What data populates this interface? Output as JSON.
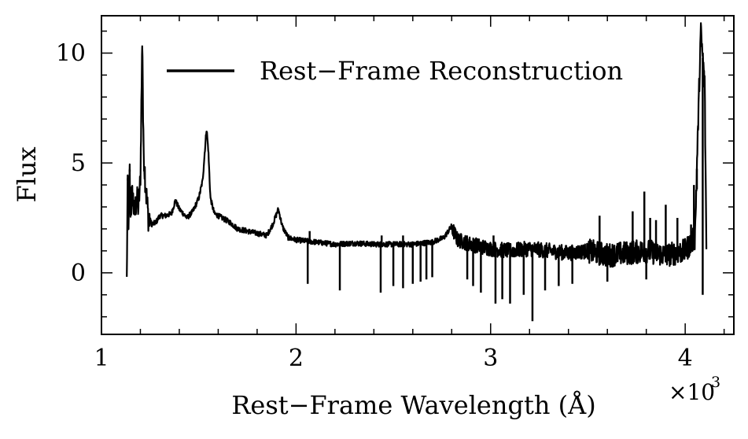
{
  "chart_data": {
    "type": "line",
    "xlabel": "Rest−Frame Wavelength (Å)",
    "ylabel": "Flux",
    "x_multiplier_label": "×10",
    "x_multiplier_exp": "3",
    "xlim": [
      1000,
      4250
    ],
    "ylim": [
      -2.8,
      11.7
    ],
    "x_ticks": [
      1000,
      2000,
      3000,
      4000
    ],
    "x_tick_labels": [
      "1",
      "2",
      "3",
      "4"
    ],
    "y_ticks": [
      0,
      5,
      10
    ],
    "y_tick_labels": [
      "0",
      "5",
      "10"
    ],
    "grid": false,
    "legend_position": "top-center",
    "line_color": "#000000",
    "series": [
      {
        "name": "Rest−Frame Reconstruction",
        "x": [
          1130,
          1135,
          1140,
          1145,
          1150,
          1160,
          1170,
          1180,
          1190,
          1200,
          1210,
          1215,
          1220,
          1230,
          1240,
          1260,
          1280,
          1300,
          1330,
          1360,
          1380,
          1400,
          1420,
          1440,
          1470,
          1500,
          1520,
          1540,
          1549,
          1560,
          1580,
          1620,
          1660,
          1700,
          1750,
          1800,
          1850,
          1880,
          1909,
          1930,
          1960,
          2000,
          2100,
          2200,
          2300,
          2400,
          2500,
          2600,
          2700,
          2760,
          2798,
          2830,
          2900,
          3000,
          3100,
          3200,
          3300,
          3400,
          3500,
          3600,
          3700,
          3800,
          3900,
          4000,
          4050,
          4080,
          4100,
          4110
        ],
        "values": [
          -0.4,
          4.2,
          2.0,
          4.6,
          2.8,
          3.6,
          2.6,
          3.4,
          3.0,
          4.2,
          11.0,
          6.0,
          5.0,
          3.6,
          2.6,
          2.2,
          2.3,
          2.6,
          2.6,
          2.7,
          3.3,
          2.9,
          2.7,
          2.5,
          2.8,
          3.4,
          4.2,
          6.6,
          5.6,
          3.4,
          2.7,
          2.5,
          2.3,
          2.0,
          1.9,
          1.8,
          1.7,
          2.2,
          2.9,
          2.1,
          1.6,
          1.5,
          1.4,
          1.3,
          1.35,
          1.3,
          1.3,
          1.3,
          1.4,
          1.6,
          2.1,
          1.5,
          1.3,
          1.1,
          1.0,
          1.1,
          1.0,
          0.9,
          1.0,
          0.8,
          0.9,
          1.0,
          0.8,
          1.0,
          1.6,
          11.0,
          8.6,
          0.4
        ],
        "absorption_lines": [
          {
            "x": 2060,
            "y": -0.5
          },
          {
            "x": 2225,
            "y": -0.8
          },
          {
            "x": 2435,
            "y": -0.9
          },
          {
            "x": 2500,
            "y": -0.6
          },
          {
            "x": 2550,
            "y": -0.7
          },
          {
            "x": 2600,
            "y": -0.5
          },
          {
            "x": 2640,
            "y": -0.4
          },
          {
            "x": 2670,
            "y": -0.3
          },
          {
            "x": 2700,
            "y": -0.2
          },
          {
            "x": 2880,
            "y": -0.3
          },
          {
            "x": 2910,
            "y": -0.6
          },
          {
            "x": 2950,
            "y": -0.9
          },
          {
            "x": 3025,
            "y": -1.4
          },
          {
            "x": 3060,
            "y": -1.2
          },
          {
            "x": 3100,
            "y": -1.4
          },
          {
            "x": 3170,
            "y": -1.0
          },
          {
            "x": 3215,
            "y": -2.2
          },
          {
            "x": 3280,
            "y": -0.8
          },
          {
            "x": 3350,
            "y": -0.6
          },
          {
            "x": 3420,
            "y": -0.5
          },
          {
            "x": 3600,
            "y": -0.4
          },
          {
            "x": 3800,
            "y": -0.3
          },
          {
            "x": 4090,
            "y": -1.0
          }
        ],
        "emission_spikes": [
          {
            "x": 1135,
            "y": 4.3
          },
          {
            "x": 1145,
            "y": 4.7
          },
          {
            "x": 2070,
            "y": 1.9
          },
          {
            "x": 2440,
            "y": 1.7
          },
          {
            "x": 2550,
            "y": 1.7
          },
          {
            "x": 3015,
            "y": 1.7
          },
          {
            "x": 3560,
            "y": 2.6
          },
          {
            "x": 3730,
            "y": 2.8
          },
          {
            "x": 3790,
            "y": 3.7
          },
          {
            "x": 3820,
            "y": 2.5
          },
          {
            "x": 3850,
            "y": 2.4
          },
          {
            "x": 3900,
            "y": 3.1
          },
          {
            "x": 3960,
            "y": 2.5
          },
          {
            "x": 4030,
            "y": 2.2
          },
          {
            "x": 4045,
            "y": 4.0
          },
          {
            "x": 4060,
            "y": 3.8
          }
        ]
      }
    ]
  }
}
